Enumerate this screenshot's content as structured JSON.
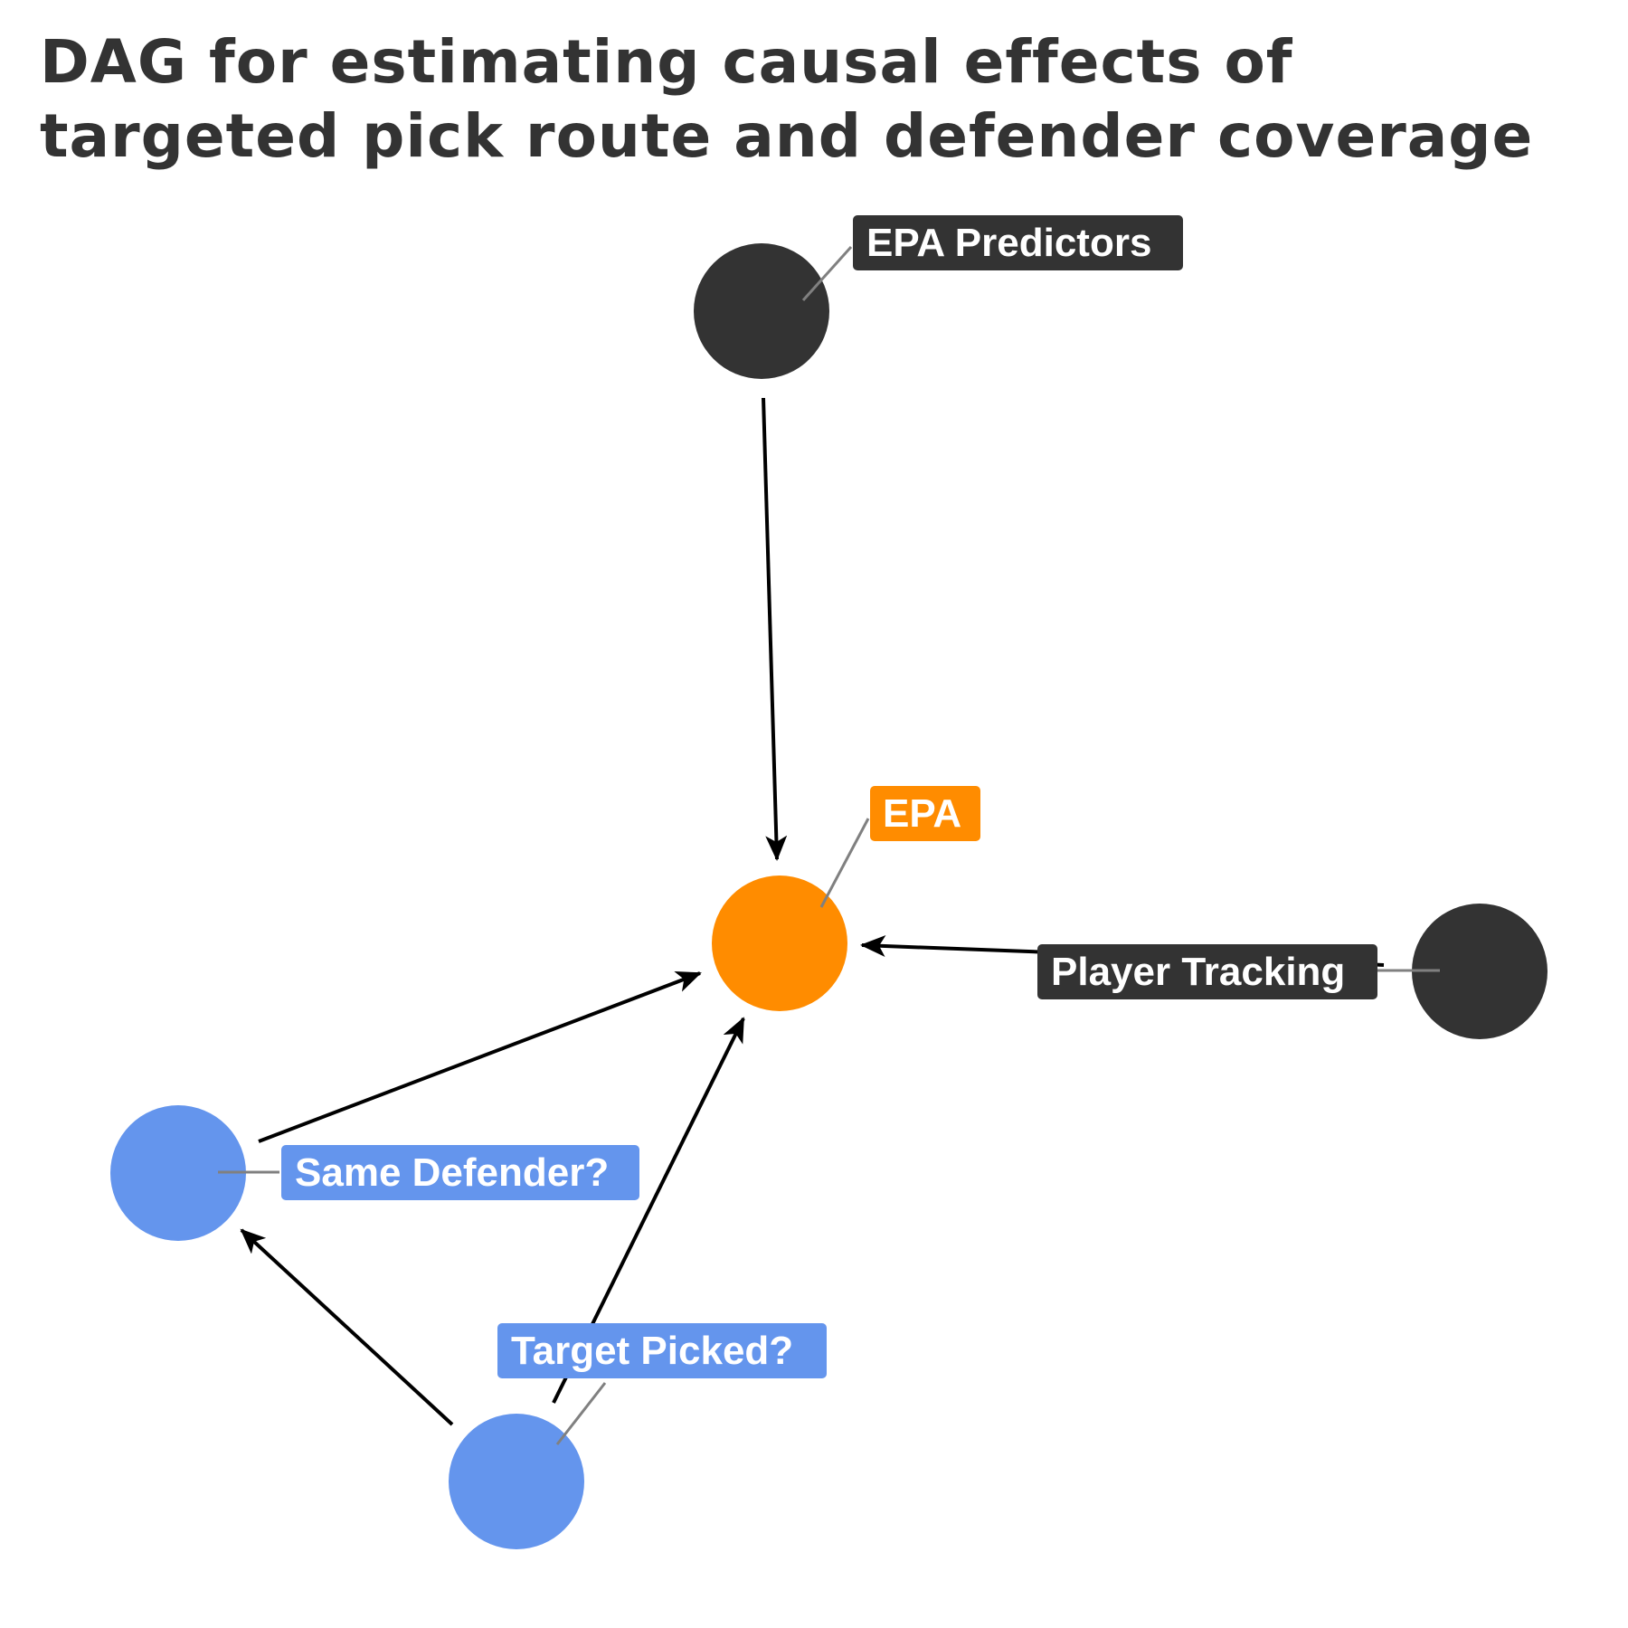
{
  "title": {
    "line1": "DAG for estimating causal effects of",
    "line2": "targeted pick route and defender coverage"
  },
  "colors": {
    "dark": "#333333",
    "outcome": "#FF8C00",
    "treatment": "#6495ED",
    "edge": "#000000",
    "leader": "#808080",
    "label_text": "#ffffff"
  },
  "nodes": {
    "epa_predictors": {
      "label": "EPA Predictors",
      "role": "dark"
    },
    "epa": {
      "label": "EPA",
      "role": "outcome"
    },
    "player_tracking": {
      "label": "Player Tracking",
      "role": "dark"
    },
    "same_defender": {
      "label": "Same Defender?",
      "role": "treatment"
    },
    "target_picked": {
      "label": "Target Picked?",
      "role": "treatment"
    }
  },
  "edges": [
    {
      "from": "EPA Predictors",
      "to": "EPA"
    },
    {
      "from": "Player Tracking",
      "to": "EPA"
    },
    {
      "from": "Same Defender?",
      "to": "EPA"
    },
    {
      "from": "Target Picked?",
      "to": "EPA"
    },
    {
      "from": "Target Picked?",
      "to": "Same Defender?"
    }
  ]
}
